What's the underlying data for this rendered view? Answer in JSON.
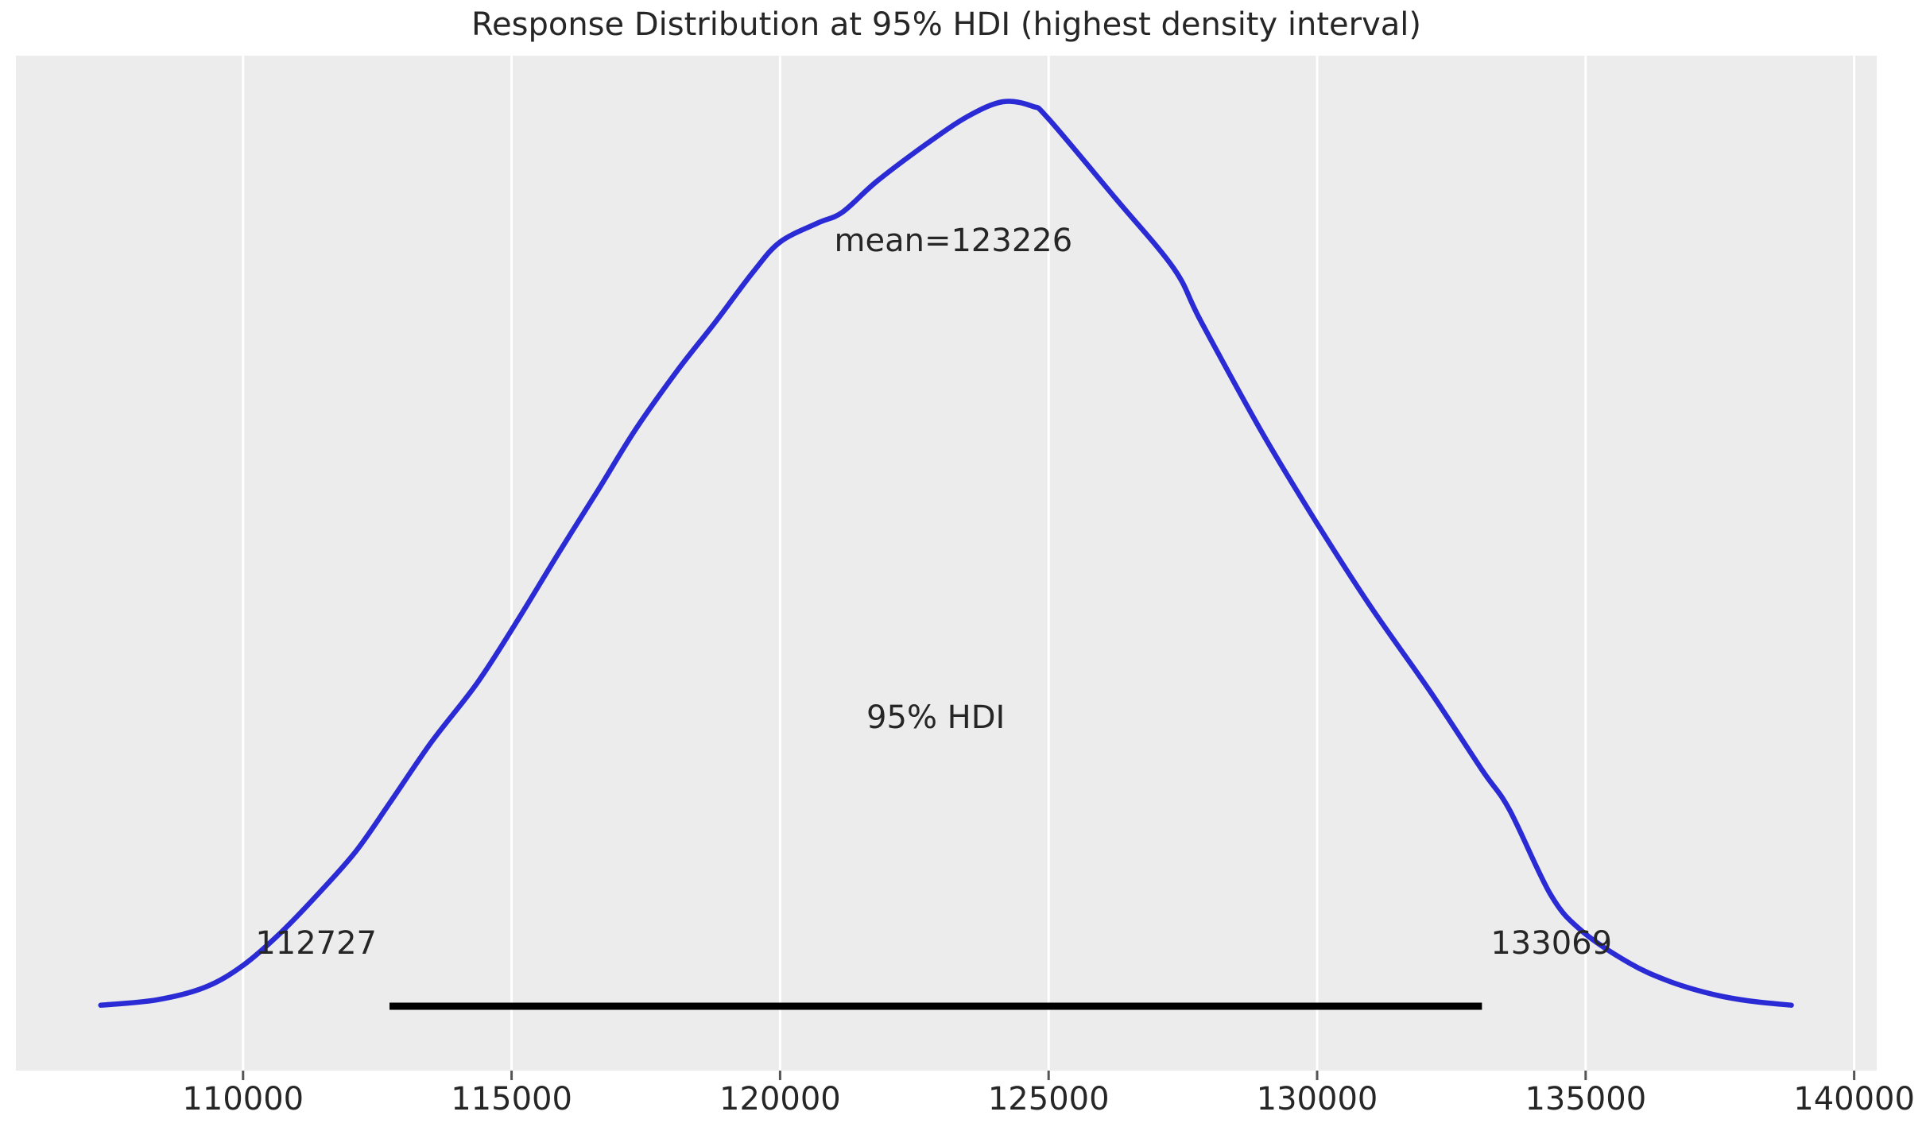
{
  "chart_data": {
    "type": "kde",
    "title": "Response Distribution at 95% HDI (highest density interval)",
    "xlabel": "",
    "ylabel": "",
    "legend": "none",
    "grid": "vertical-white-gridlines-only",
    "x_ticks": [
      110000,
      115000,
      120000,
      125000,
      130000,
      135000,
      140000
    ],
    "xlim": [
      105770,
      140420
    ],
    "mean": 123226,
    "mean_label": "mean=123226",
    "hdi": {
      "level_label": "95% HDI",
      "lower": 112727,
      "upper": 133069
    },
    "curve_points_value_vs_density_fraction": [
      [
        107350,
        0.002
      ],
      [
        108400,
        0.008
      ],
      [
        109300,
        0.022
      ],
      [
        110000,
        0.046
      ],
      [
        110700,
        0.082
      ],
      [
        111400,
        0.125
      ],
      [
        112100,
        0.172
      ],
      [
        112727,
        0.225
      ],
      [
        113500,
        0.292
      ],
      [
        114360,
        0.358
      ],
      [
        115100,
        0.426
      ],
      [
        115840,
        0.498
      ],
      [
        116600,
        0.57
      ],
      [
        117320,
        0.639
      ],
      [
        118100,
        0.704
      ],
      [
        118800,
        0.757
      ],
      [
        119500,
        0.812
      ],
      [
        120000,
        0.845
      ],
      [
        120700,
        0.866
      ],
      [
        121160,
        0.878
      ],
      [
        121800,
        0.912
      ],
      [
        122740,
        0.954
      ],
      [
        123500,
        0.984
      ],
      [
        124150,
        1.0
      ],
      [
        124700,
        0.995
      ],
      [
        125000,
        0.981
      ],
      [
        126250,
        0.893
      ],
      [
        127330,
        0.816
      ],
      [
        127840,
        0.757
      ],
      [
        128980,
        0.634
      ],
      [
        130000,
        0.534
      ],
      [
        131000,
        0.442
      ],
      [
        132100,
        0.349
      ],
      [
        133069,
        0.262
      ],
      [
        133580,
        0.218
      ],
      [
        134340,
        0.125
      ],
      [
        134910,
        0.085
      ],
      [
        135800,
        0.049
      ],
      [
        136530,
        0.029
      ],
      [
        137300,
        0.015
      ],
      [
        138010,
        0.007
      ],
      [
        138830,
        0.002
      ]
    ],
    "colors": {
      "plot_background": "#ececec",
      "gridline": "#ffffff",
      "curve": "#2b2bd6",
      "hdi_line": "#000000",
      "text": "#262626",
      "tick_mark": "#555555"
    }
  }
}
